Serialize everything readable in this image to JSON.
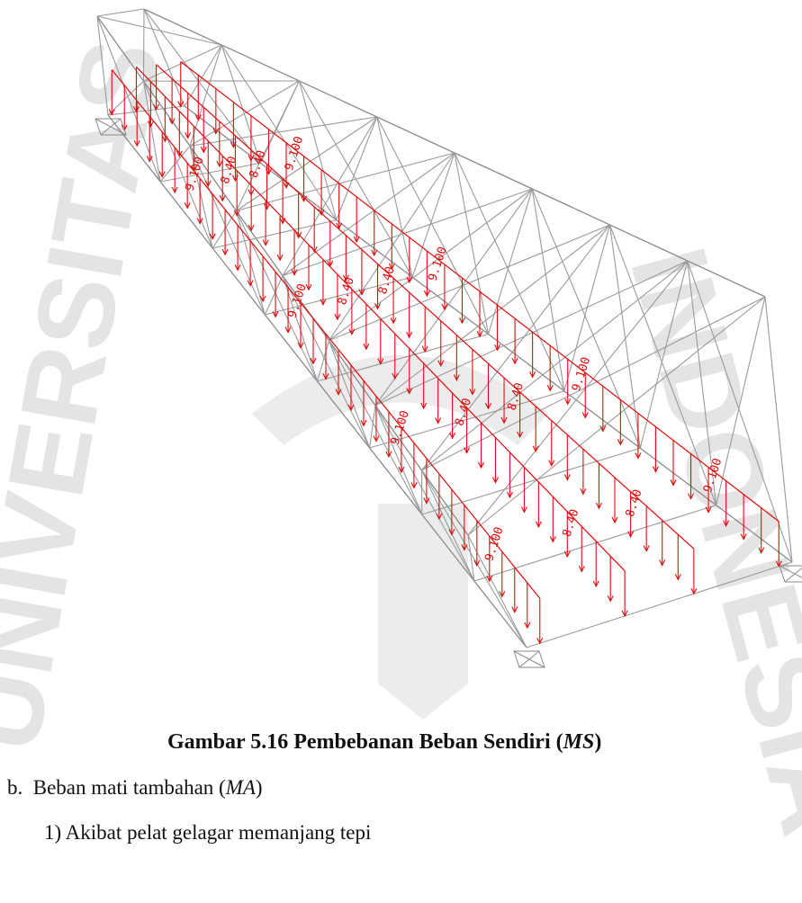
{
  "figure": {
    "caption_number": "Gambar 5.16",
    "caption_text": "Pembebanan Beban Sendiri (",
    "caption_symbol": "MS",
    "caption_close": ")",
    "load_labels": [
      "9.100",
      "8.40",
      "8.40",
      "9.100"
    ]
  },
  "body": {
    "item_b_marker": "b.",
    "item_b_text": "Beban mati tambahan (",
    "item_b_symbol": "MA",
    "item_b_close": ")",
    "sub_item_1": "1) Akibat pelat gelagar memanjang tepi"
  },
  "colors": {
    "load": "#e10b0b",
    "truss": "#8a8a8a",
    "watermark": "#e4e4e4"
  }
}
